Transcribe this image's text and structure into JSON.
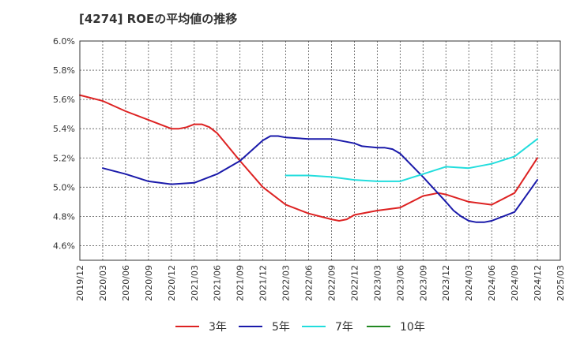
{
  "chart_data": {
    "type": "line",
    "title": "[4274]  ROEの平均値の推移",
    "xlabel": "",
    "ylabel": "",
    "ylim": [
      4.5,
      6.0
    ],
    "y_ticks": [
      4.6,
      4.8,
      5.0,
      5.2,
      5.4,
      5.6,
      5.8,
      6.0
    ],
    "y_tick_labels": [
      "4.6%",
      "4.8%",
      "5.0%",
      "5.2%",
      "5.4%",
      "5.6%",
      "5.8%",
      "6.0%"
    ],
    "x_tick_labels": [
      "2019/12",
      "2020/03",
      "2020/06",
      "2020/09",
      "2020/12",
      "2021/03",
      "2021/06",
      "2021/09",
      "2021/12",
      "2022/03",
      "2022/06",
      "2022/09",
      "2022/12",
      "2023/03",
      "2023/06",
      "2023/09",
      "2023/12",
      "2024/03",
      "2024/06",
      "2024/09",
      "2024/12",
      "2025/03"
    ],
    "grid": true,
    "legend_position": "bottom",
    "series": [
      {
        "name": "3年",
        "color": "#dd2222",
        "points": [
          [
            "2019/12",
            5.63
          ],
          [
            "2020/03",
            5.59
          ],
          [
            "2020/06",
            5.52
          ],
          [
            "2020/09",
            5.46
          ],
          [
            "2020/12",
            5.4
          ],
          [
            "2021/01",
            5.4
          ],
          [
            "2021/02",
            5.41
          ],
          [
            "2021/03",
            5.43
          ],
          [
            "2021/04",
            5.43
          ],
          [
            "2021/05",
            5.41
          ],
          [
            "2021/06",
            5.37
          ],
          [
            "2021/09",
            5.18
          ],
          [
            "2021/12",
            5.0
          ],
          [
            "2022/03",
            4.88
          ],
          [
            "2022/06",
            4.82
          ],
          [
            "2022/09",
            4.78
          ],
          [
            "2022/10",
            4.77
          ],
          [
            "2022/11",
            4.78
          ],
          [
            "2022/12",
            4.81
          ],
          [
            "2023/03",
            4.84
          ],
          [
            "2023/06",
            4.86
          ],
          [
            "2023/09",
            4.94
          ],
          [
            "2023/10",
            4.95
          ],
          [
            "2023/11",
            4.96
          ],
          [
            "2023/12",
            4.95
          ],
          [
            "2024/03",
            4.9
          ],
          [
            "2024/06",
            4.88
          ],
          [
            "2024/09",
            4.96
          ],
          [
            "2024/12",
            5.2
          ]
        ]
      },
      {
        "name": "5年",
        "color": "#1a1aaa",
        "points": [
          [
            "2020/03",
            5.13
          ],
          [
            "2020/06",
            5.09
          ],
          [
            "2020/09",
            5.04
          ],
          [
            "2020/12",
            5.02
          ],
          [
            "2021/03",
            5.03
          ],
          [
            "2021/06",
            5.09
          ],
          [
            "2021/09",
            5.18
          ],
          [
            "2021/12",
            5.32
          ],
          [
            "2022/01",
            5.35
          ],
          [
            "2022/02",
            5.35
          ],
          [
            "2022/03",
            5.34
          ],
          [
            "2022/06",
            5.33
          ],
          [
            "2022/09",
            5.33
          ],
          [
            "2022/12",
            5.3
          ],
          [
            "2023/01",
            5.28
          ],
          [
            "2023/03",
            5.27
          ],
          [
            "2023/04",
            5.27
          ],
          [
            "2023/05",
            5.26
          ],
          [
            "2023/06",
            5.23
          ],
          [
            "2023/09",
            5.07
          ],
          [
            "2023/12",
            4.9
          ],
          [
            "2024/01",
            4.84
          ],
          [
            "2024/02",
            4.8
          ],
          [
            "2024/03",
            4.77
          ],
          [
            "2024/04",
            4.76
          ],
          [
            "2024/05",
            4.76
          ],
          [
            "2024/06",
            4.77
          ],
          [
            "2024/09",
            4.83
          ],
          [
            "2024/12",
            5.05
          ]
        ]
      },
      {
        "name": "7年",
        "color": "#22dddd",
        "points": [
          [
            "2022/03",
            5.08
          ],
          [
            "2022/06",
            5.08
          ],
          [
            "2022/09",
            5.07
          ],
          [
            "2022/12",
            5.05
          ],
          [
            "2023/03",
            5.04
          ],
          [
            "2023/06",
            5.04
          ],
          [
            "2023/09",
            5.09
          ],
          [
            "2023/12",
            5.14
          ],
          [
            "2024/03",
            5.13
          ],
          [
            "2024/06",
            5.16
          ],
          [
            "2024/09",
            5.21
          ],
          [
            "2024/12",
            5.33
          ]
        ]
      },
      {
        "name": "10年",
        "color": "#228822",
        "points": []
      }
    ]
  }
}
